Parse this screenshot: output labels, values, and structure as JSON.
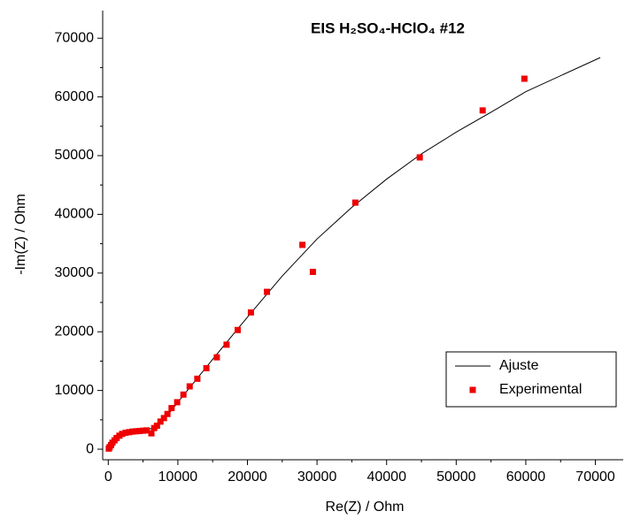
{
  "chart_data": {
    "type": "scatter",
    "title": "EIS H₂SO₄-HClO₄ #12",
    "x_label": "Re(Z) / Ohm",
    "y_label": "-Im(Z) / Ohm",
    "xlim": [
      -800,
      74000
    ],
    "ylim": [
      -1800,
      74700
    ],
    "xticks": [
      0,
      10000,
      20000,
      30000,
      40000,
      50000,
      60000,
      70000
    ],
    "yticks": [
      0,
      10000,
      20000,
      30000,
      40000,
      50000,
      60000,
      70000
    ],
    "legend": "lower right",
    "series": [
      {
        "name": "Ajuste",
        "type": "line",
        "color": "#000000",
        "x": [
          0,
          500,
          1500,
          3000,
          5000,
          6500,
          8000,
          10000,
          15000,
          20000,
          25000,
          30000,
          35000,
          40000,
          45000,
          50000,
          55000,
          60000,
          70700
        ],
        "values": [
          0,
          1200,
          2300,
          2900,
          3200,
          3600,
          5000,
          8000,
          15300,
          22500,
          29500,
          35800,
          41200,
          46000,
          50300,
          54000,
          57400,
          60900,
          66700
        ]
      },
      {
        "name": "Experimental",
        "type": "scatter",
        "color": "#ee0000",
        "x": [
          80,
          200,
          400,
          600,
          900,
          1200,
          1600,
          2000,
          2500,
          3000,
          3500,
          4000,
          4500,
          5000,
          5500,
          6200,
          6600,
          7000,
          7500,
          8000,
          8500,
          9100,
          9900,
          10800,
          11700,
          12800,
          14100,
          15600,
          17000,
          18600,
          20500,
          22800,
          29400,
          27900,
          35500,
          44760,
          53800,
          59800
        ],
        "values": [
          100,
          350,
          700,
          1100,
          1500,
          1900,
          2300,
          2600,
          2800,
          2900,
          3000,
          3050,
          3100,
          3150,
          3200,
          2700,
          3600,
          4000,
          4700,
          5300,
          6000,
          7000,
          8000,
          9300,
          10700,
          12000,
          13800,
          15650,
          17800,
          20300,
          23300,
          26800,
          30200,
          34800,
          42000,
          49700,
          57700,
          63100
        ]
      }
    ]
  }
}
